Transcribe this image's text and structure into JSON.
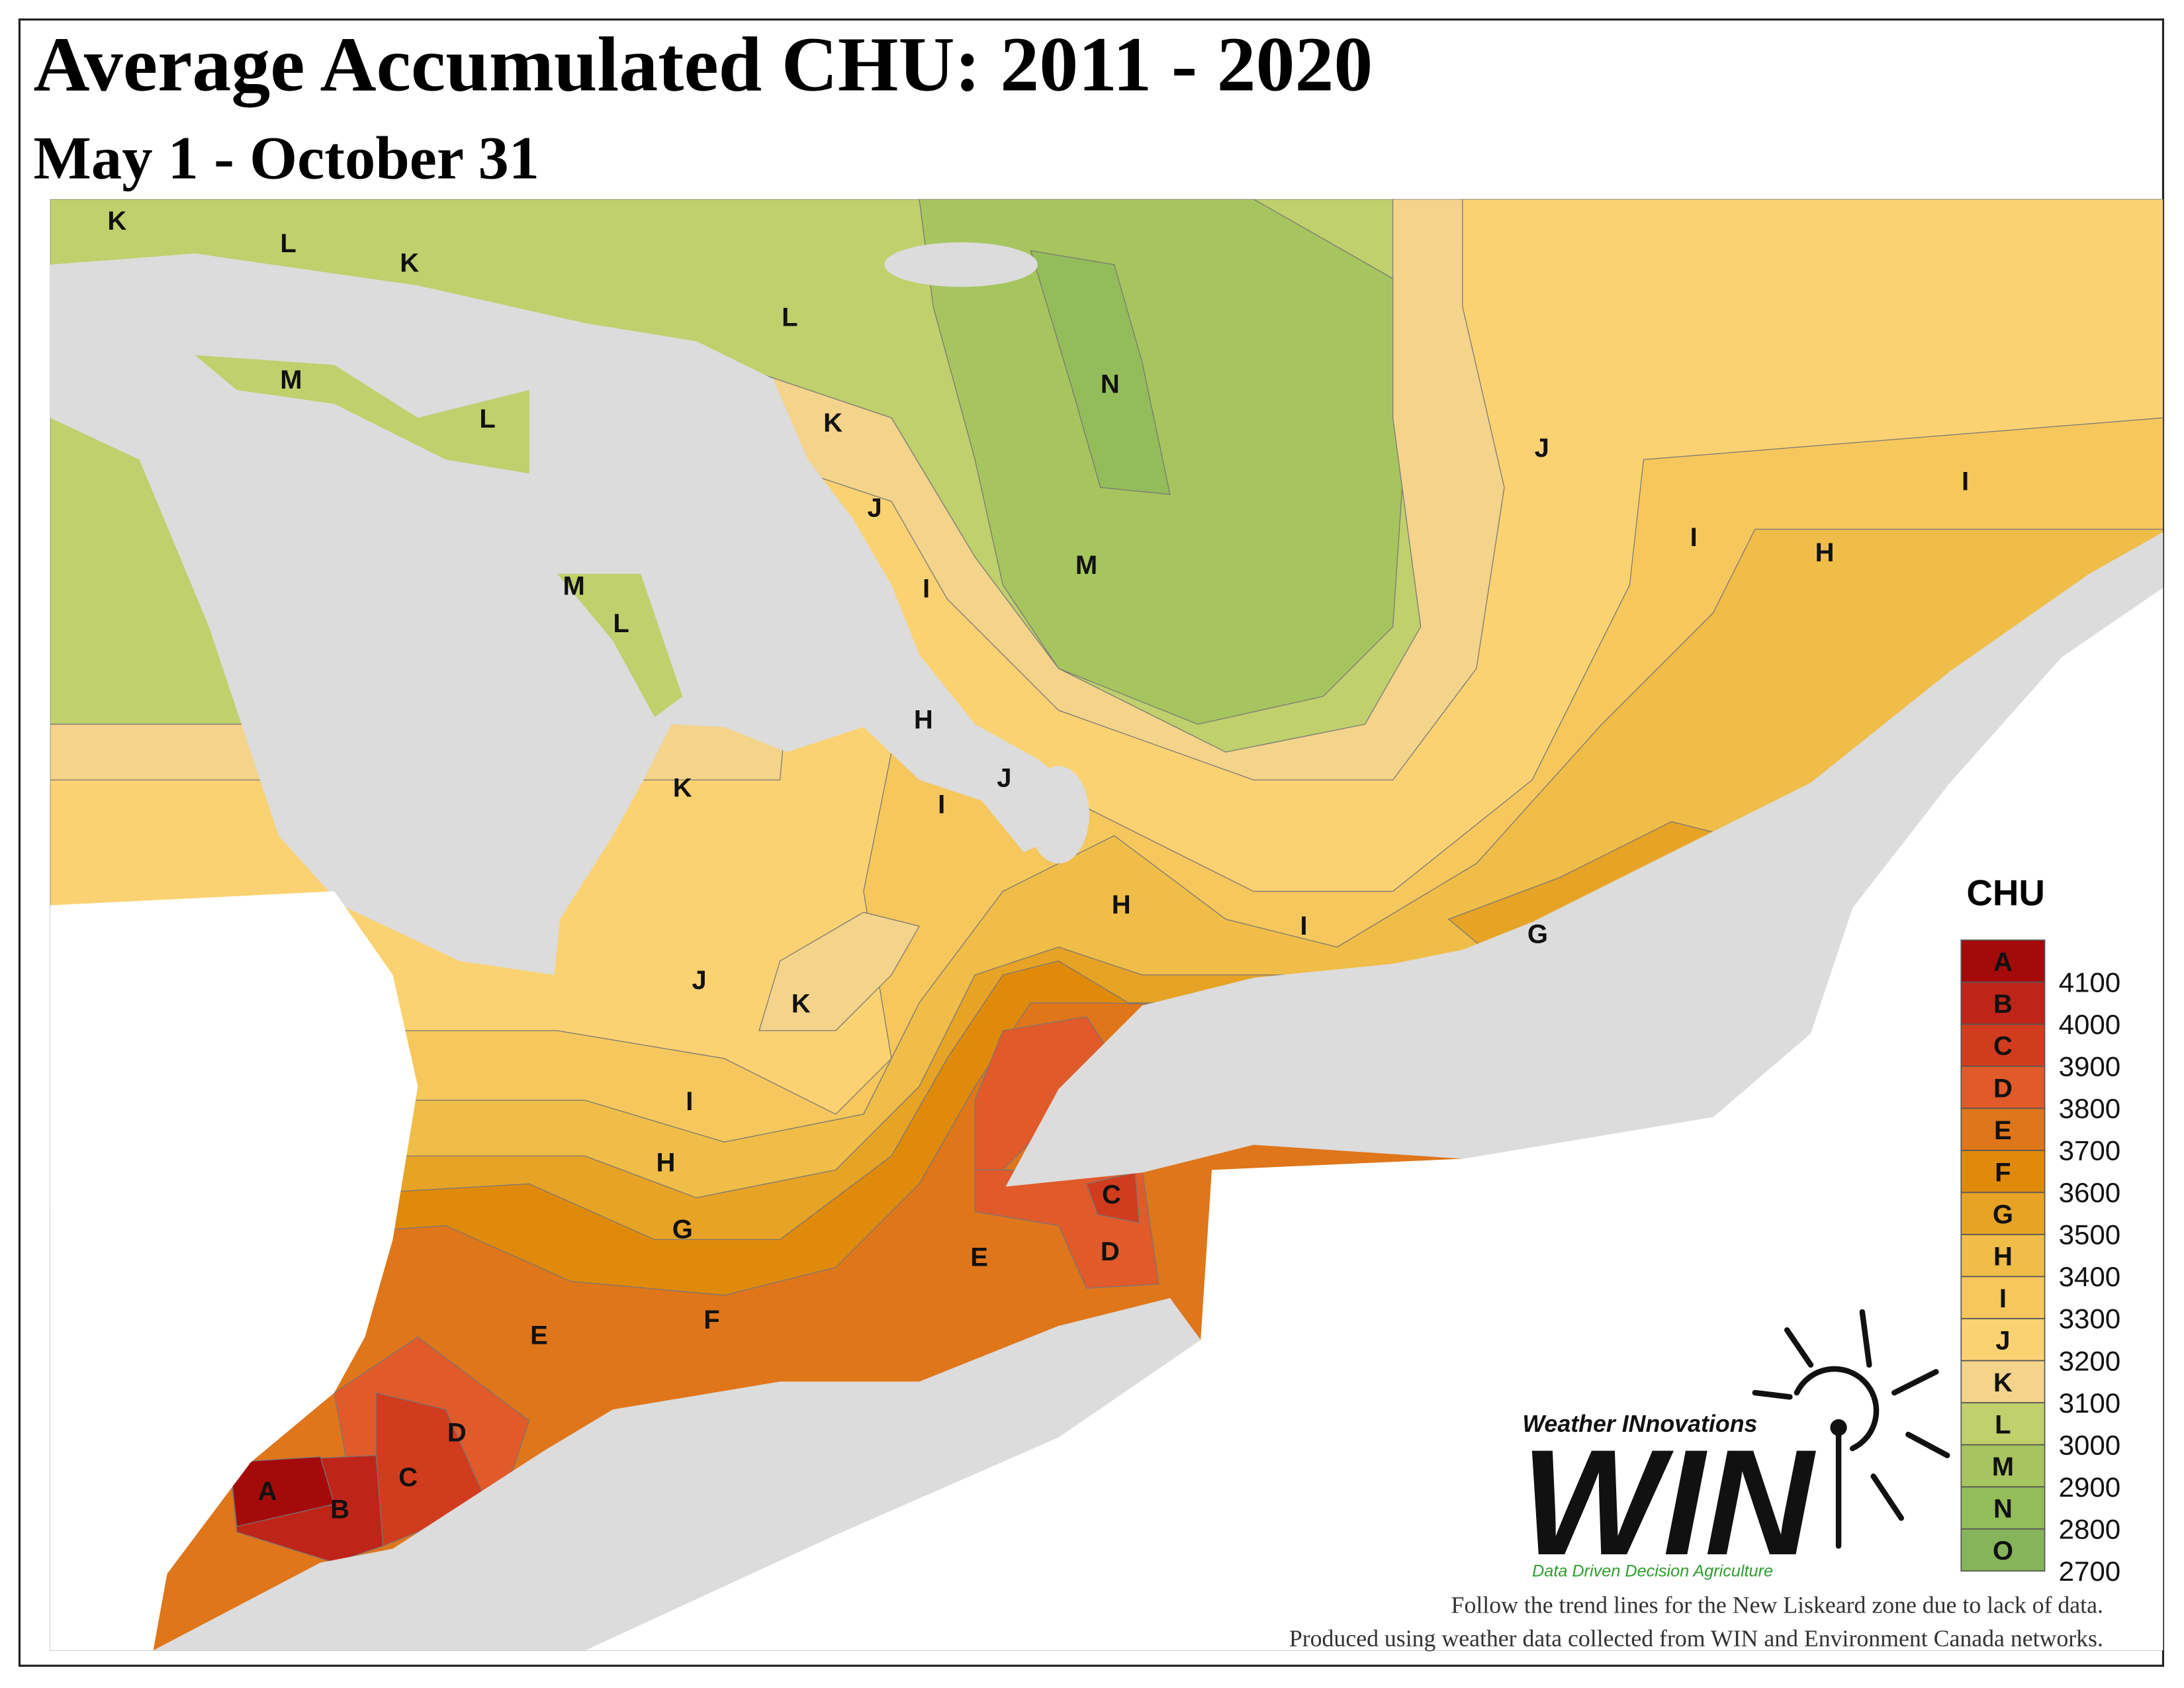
{
  "title": "Average Accumulated CHU: 2011 - 2020",
  "subtitle": "May 1 - October 31",
  "legend": {
    "title": "CHU",
    "classes": [
      {
        "letter": "A",
        "color": "#a50a0a"
      },
      {
        "letter": "B",
        "color": "#bf2418"
      },
      {
        "letter": "C",
        "color": "#d23c1e"
      },
      {
        "letter": "D",
        "color": "#e05a2a"
      },
      {
        "letter": "E",
        "color": "#df761a"
      },
      {
        "letter": "F",
        "color": "#e08a0c"
      },
      {
        "letter": "G",
        "color": "#e7a326"
      },
      {
        "letter": "H",
        "color": "#efbd48"
      },
      {
        "letter": "I",
        "color": "#f6c75c"
      },
      {
        "letter": "J",
        "color": "#fbd272"
      },
      {
        "letter": "K",
        "color": "#f4d38a"
      },
      {
        "letter": "L",
        "color": "#bfd06c"
      },
      {
        "letter": "M",
        "color": "#a7c55e"
      },
      {
        "letter": "N",
        "color": "#93bc5a"
      },
      {
        "letter": "O",
        "color": "#86b45a"
      }
    ],
    "values": [
      4100,
      4000,
      3900,
      3800,
      3700,
      3600,
      3500,
      3400,
      3300,
      3200,
      3100,
      3000,
      2900,
      2800,
      2700
    ]
  },
  "zone_labels": [
    "K",
    "L",
    "K",
    "L",
    "M",
    "L",
    "N",
    "K",
    "J",
    "I",
    "J",
    "I",
    "H",
    "M",
    "I",
    "M",
    "L",
    "H",
    "J",
    "K",
    "I",
    "H",
    "I",
    "G",
    "J",
    "K",
    "I",
    "H",
    "C",
    "G",
    "E",
    "D",
    "F",
    "E",
    "D",
    "C",
    "A",
    "B"
  ],
  "logo": {
    "name": "Weather INnovations",
    "mark": "WIN",
    "tagline": "Data Driven Decision Agriculture"
  },
  "notes": [
    "Follow the trend lines for the New Liskeard zone due to lack of data.",
    "Produced using weather data collected from WIN and Environment Canada networks."
  ]
}
